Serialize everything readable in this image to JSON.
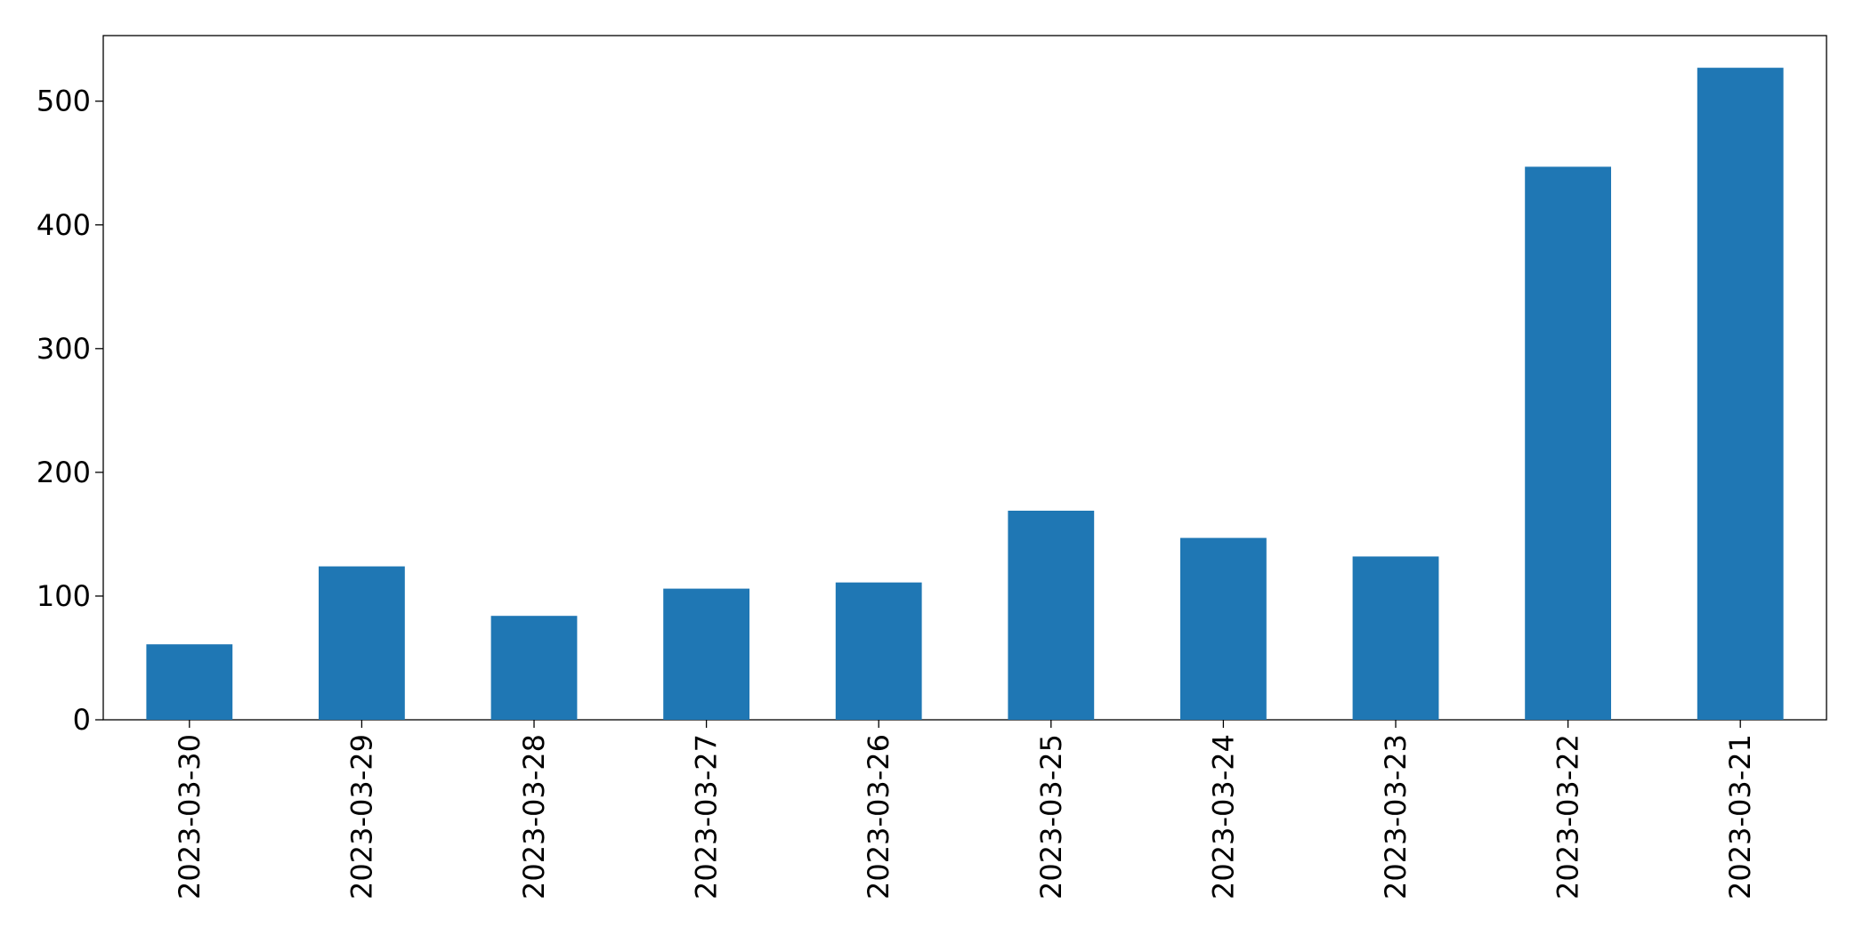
{
  "chart_data": {
    "type": "bar",
    "categories": [
      "2023-03-30",
      "2023-03-29",
      "2023-03-28",
      "2023-03-27",
      "2023-03-26",
      "2023-03-25",
      "2023-03-24",
      "2023-03-23",
      "2023-03-22",
      "2023-03-21"
    ],
    "values": [
      61,
      124,
      84,
      106,
      111,
      169,
      147,
      132,
      447,
      527
    ],
    "color": "#1f77b4",
    "ylim": [
      0,
      553
    ],
    "yticks": [
      0,
      100,
      200,
      300,
      400,
      500
    ],
    "grid": false
  }
}
